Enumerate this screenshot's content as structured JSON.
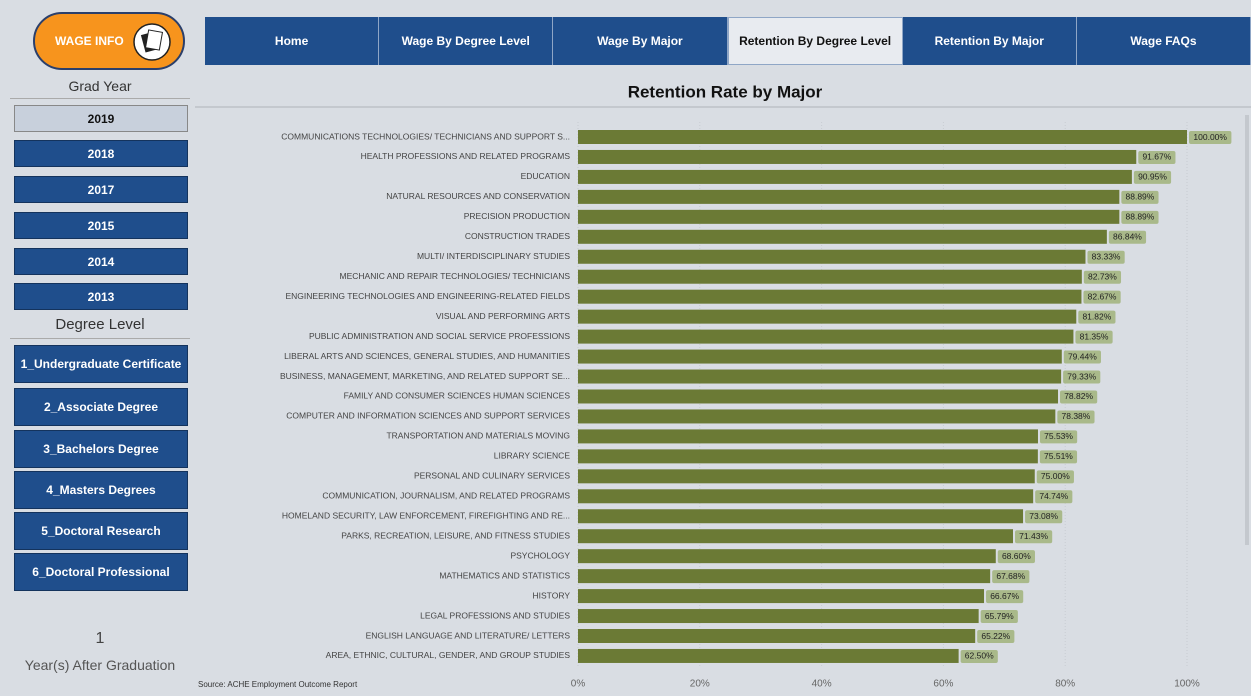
{
  "logo": "WAGE INFO",
  "nav": {
    "tabs": [
      "Home",
      "Wage By Degree Level",
      "Wage By Major",
      "Retention By Degree Level",
      "Retention By Major",
      "Wage FAQs"
    ],
    "active": 3
  },
  "grad_year": {
    "label": "Grad Year",
    "options": [
      "2019",
      "2018",
      "2017",
      "2015",
      "2014",
      "2013"
    ],
    "selected": 0
  },
  "degree_level": {
    "label": "Degree Level",
    "options": [
      "1_Undergraduate Certificate",
      "2_Associate Degree",
      "3_Bachelors Degree",
      "4_Masters Degrees",
      "5_Doctoral Research",
      "6_Doctoral Professional"
    ]
  },
  "years_after": {
    "value": "1",
    "label": "Year(s) After Graduation"
  },
  "chart_data": {
    "type": "hbar",
    "title": "Retention Rate by Major",
    "source": "Source: ACHE Employment Outcome Report",
    "color": "#6b7a35",
    "label_color": "#a9b98a",
    "grid": true,
    "categories": [
      "COMMUNICATIONS TECHNOLOGIES/ TECHNICIANS AND SUPPORT S...",
      "HEALTH PROFESSIONS AND RELATED PROGRAMS",
      "EDUCATION",
      "NATURAL RESOURCES AND CONSERVATION",
      "PRECISION PRODUCTION",
      "CONSTRUCTION TRADES",
      "MULTI/ INTERDISCIPLINARY STUDIES",
      "MECHANIC AND REPAIR TECHNOLOGIES/ TECHNICIANS",
      "ENGINEERING TECHNOLOGIES AND ENGINEERING-RELATED FIELDS",
      "VISUAL AND PERFORMING ARTS",
      "PUBLIC ADMINISTRATION AND SOCIAL SERVICE PROFESSIONS",
      "LIBERAL ARTS AND SCIENCES, GENERAL STUDIES, AND HUMANITIES",
      "BUSINESS, MANAGEMENT, MARKETING, AND RELATED SUPPORT SE...",
      "FAMILY AND CONSUMER SCIENCES HUMAN SCIENCES",
      "COMPUTER AND INFORMATION SCIENCES AND SUPPORT SERVICES",
      "TRANSPORTATION AND MATERIALS MOVING",
      "LIBRARY SCIENCE",
      "PERSONAL AND CULINARY SERVICES",
      "COMMUNICATION, JOURNALISM, AND RELATED PROGRAMS",
      "HOMELAND SECURITY, LAW ENFORCEMENT, FIREFIGHTING AND RE...",
      "PARKS, RECREATION, LEISURE, AND FITNESS STUDIES",
      "PSYCHOLOGY",
      "MATHEMATICS AND STATISTICS",
      "HISTORY",
      "LEGAL PROFESSIONS AND STUDIES",
      "ENGLISH LANGUAGE AND LITERATURE/ LETTERS",
      "AREA, ETHNIC, CULTURAL, GENDER, AND GROUP STUDIES"
    ],
    "values": [
      100,
      91.67,
      90.95,
      88.89,
      88.89,
      86.84,
      83.33,
      82.73,
      82.67,
      81.82,
      81.35,
      79.44,
      79.33,
      78.82,
      78.38,
      75.53,
      75.51,
      75,
      74.74,
      73.08,
      71.43,
      68.6,
      67.68,
      66.67,
      65.79,
      65.22,
      62.5
    ],
    "value_labels": [
      "100.00%",
      "91.67%",
      "90.95%",
      "88.89%",
      "88.89%",
      "86.84%",
      "83.33%",
      "82.73%",
      "82.67%",
      "81.82%",
      "81.35%",
      "79.44%",
      "79.33%",
      "78.82%",
      "78.38%",
      "75.53%",
      "75.51%",
      "75.00%",
      "74.74%",
      "73.08%",
      "71.43%",
      "68.60%",
      "67.68%",
      "66.67%",
      "65.79%",
      "65.22%",
      "62.50%"
    ],
    "xlim": [
      0,
      100
    ],
    "xticks": [
      {
        "value": 0,
        "label": "0%"
      },
      {
        "value": 20,
        "label": "20%"
      },
      {
        "value": 40,
        "label": "40%"
      },
      {
        "value": 60,
        "label": "60%"
      },
      {
        "value": 80,
        "label": "80%"
      },
      {
        "value": 100,
        "label": "100%"
      }
    ]
  }
}
